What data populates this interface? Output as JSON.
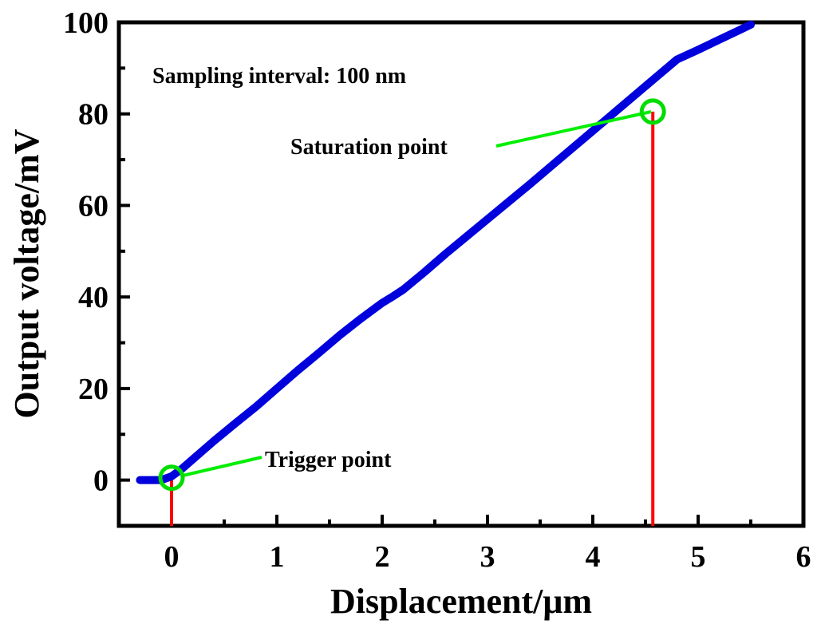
{
  "chart_data": {
    "type": "line",
    "title": "",
    "xlabel": "Displacement/μm",
    "ylabel": "Output voltage/mV",
    "xlim": [
      -0.5,
      6
    ],
    "ylim": [
      -10,
      100
    ],
    "xticks": [
      "0",
      "1",
      "2",
      "3",
      "4",
      "5",
      "6"
    ],
    "yticks": [
      "0",
      "20",
      "40",
      "60",
      "80",
      "100"
    ],
    "grid": false,
    "series": [
      {
        "name": "Output voltage",
        "color": "#0000dd",
        "x": [
          -0.3,
          -0.2,
          -0.1,
          0.0,
          0.1,
          0.2,
          0.4,
          0.6,
          0.8,
          1.0,
          1.2,
          1.4,
          1.6,
          1.8,
          2.0,
          2.1,
          2.2,
          2.4,
          2.6,
          2.8,
          3.0,
          3.2,
          3.4,
          3.6,
          3.8,
          4.0,
          4.2,
          4.4,
          4.6,
          4.8,
          5.0,
          5.2,
          5.4,
          5.5
        ],
        "y": [
          0,
          0,
          0,
          0.8,
          2.5,
          4.5,
          8.5,
          12.3,
          16.0,
          20.0,
          24.0,
          27.8,
          31.7,
          35.3,
          38.7,
          40.1,
          41.6,
          45.4,
          49.4,
          53.2,
          57.0,
          60.8,
          64.6,
          68.5,
          72.4,
          76.3,
          80.2,
          84.1,
          88.0,
          91.9,
          94.0,
          96.2,
          98.4,
          99.5
        ]
      }
    ],
    "markers": [
      {
        "name": "Trigger point",
        "x": 0.0,
        "y": 0.5,
        "color": "#00dd00",
        "drop_line_color": "#ff0000"
      },
      {
        "name": "Saturation point",
        "x": 4.57,
        "y": 80.5,
        "color": "#00dd00",
        "drop_line_color": "#ff0000"
      }
    ],
    "annotations": [
      {
        "text": "Sampling interval: 100 nm"
      },
      {
        "text": "Saturation point"
      },
      {
        "text": "Trigger point"
      }
    ]
  }
}
